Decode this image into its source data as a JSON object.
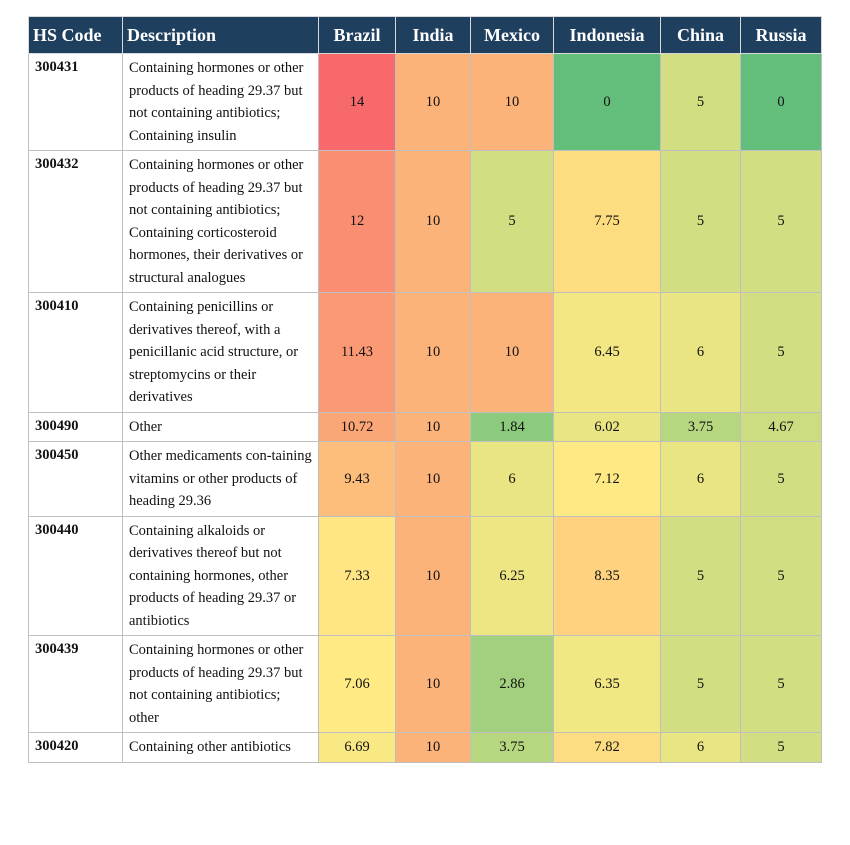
{
  "table": {
    "header": [
      "HS Code",
      "Description",
      "Brazil",
      "India",
      "Mexico",
      "Indonesia",
      "China",
      "Russia"
    ],
    "rows": [
      [
        "300431",
        "Containing hormones or other products of heading 29.37 but not containing antibiotics; Containing insulin",
        14,
        10,
        10,
        0,
        5,
        0
      ],
      [
        "300432",
        "Containing hormones or other products of heading 29.37 but not containing antibiotics; Containing corticosteroid hormones, their derivatives or structural analogues",
        12,
        10,
        5,
        7.75,
        5,
        5
      ],
      [
        "300410",
        "Containing penicillins or derivatives thereof, with a penicillanic acid structure, or streptomycins or their derivatives",
        11.43,
        10,
        10,
        6.45,
        6,
        5
      ],
      [
        "300490",
        "Other",
        10.72,
        10,
        1.84,
        6.02,
        3.75,
        4.67
      ],
      [
        "300450",
        "Other medicaments con-taining vitamins or other products of heading 29.36",
        9.43,
        10,
        6,
        7.12,
        6,
        5
      ],
      [
        "300440",
        "Containing alkaloids or derivatives thereof but not containing hormones, other products of heading 29.37 or antibiotics",
        7.33,
        10,
        6.25,
        8.35,
        5,
        5
      ],
      [
        "300439",
        "Containing hormones or other products of heading 29.37 but not containing antibiotics; other",
        7.06,
        10,
        2.86,
        6.35,
        5,
        5
      ],
      [
        "300420",
        "Containing other antibiotics",
        6.69,
        10,
        3.75,
        7.82,
        6,
        5
      ]
    ]
  }
}
